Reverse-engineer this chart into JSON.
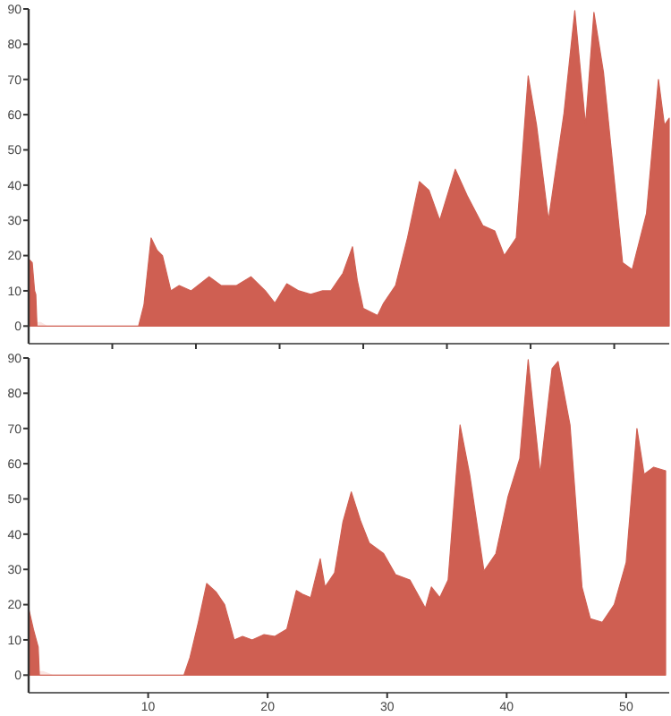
{
  "chart_data": [
    {
      "type": "area",
      "xlim": [
        0,
        53.6
      ],
      "ylim": [
        -5,
        90
      ],
      "yticks": [
        0,
        10,
        20,
        30,
        40,
        50,
        60,
        70,
        80,
        90
      ],
      "xticks": [
        {
          "value": 7,
          "label": null
        },
        {
          "value": 14,
          "label": null
        },
        {
          "value": 21,
          "label": null
        },
        {
          "value": 28,
          "label": null
        },
        {
          "value": 35,
          "label": null
        },
        {
          "value": 42,
          "label": null
        },
        {
          "value": 49,
          "label": null
        }
      ],
      "tick_labels": "y",
      "grid": false,
      "series": [
        {
          "color": "#fbe6e3",
          "x": [
            0.7,
            1.0,
            1.5,
            2.0,
            9.2
          ],
          "values": [
            1,
            1,
            0,
            0,
            0
          ]
        },
        {
          "color": "#cf5f52",
          "x": [
            0,
            0.3,
            0.5,
            0.6,
            0.7,
            9.2,
            9.65,
            10.25,
            10.75,
            11.2,
            11.9,
            12.6,
            13.6,
            15.1,
            16.1,
            17.4,
            18.6,
            19.8,
            20.6,
            21.6,
            22.6,
            23.6,
            24.6,
            25.3,
            26.3,
            27.1,
            27.5,
            28.0,
            29.2,
            29.7,
            30.7,
            31.7,
            32.7,
            33.5,
            34.4,
            35.7,
            36.7,
            38.0,
            39.0,
            39.8,
            40.8,
            41.8,
            42.5,
            43.5,
            44.8,
            45.7,
            46.6,
            47.3,
            48.1,
            49.7,
            50.5,
            51.7,
            52.7,
            53.2,
            53.6
          ],
          "values": [
            19,
            18,
            10,
            9,
            0,
            0,
            6,
            25,
            21.5,
            20,
            10,
            11.5,
            10,
            14,
            11.5,
            11.5,
            14,
            10,
            6.5,
            12,
            10,
            9,
            10,
            10,
            15,
            22.5,
            13,
            5,
            3,
            6.5,
            11.5,
            25,
            41,
            38.5,
            30,
            44.5,
            37,
            28.5,
            27,
            20,
            25,
            71,
            57,
            30,
            60.5,
            89.5,
            57,
            89,
            72,
            18,
            16,
            32,
            70,
            57,
            59
          ]
        }
      ]
    },
    {
      "type": "area",
      "xlim": [
        0,
        53.6
      ],
      "ylim": [
        -5,
        90
      ],
      "yticks": [
        0,
        10,
        20,
        30,
        40,
        50,
        60,
        70,
        80,
        90
      ],
      "xticks": [
        10,
        20,
        30,
        40,
        50
      ],
      "grid": false,
      "series": [
        {
          "color": "#fbe6e3",
          "x": [
            0.9,
            1.2,
            2.0,
            3.0,
            13.0
          ],
          "values": [
            1,
            1,
            0,
            0,
            0
          ]
        },
        {
          "color": "#cf5f52",
          "x": [
            0,
            0.4,
            0.8,
            0.9,
            13.0,
            13.5,
            14.2,
            14.9,
            15.7,
            16.4,
            17.2,
            17.9,
            18.7,
            19.7,
            20.6,
            21.6,
            22.4,
            22.9,
            23.6,
            24.4,
            24.8,
            25.6,
            26.3,
            27.0,
            27.8,
            28.5,
            29.7,
            30.7,
            31.9,
            33.2,
            33.7,
            34.4,
            35.1,
            36.1,
            36.9,
            38.1,
            39.1,
            40.1,
            41.1,
            41.8,
            42.8,
            43.8,
            44.3,
            45.3,
            46.3,
            47.0,
            48.0,
            49.0,
            50.0,
            50.9,
            51.5,
            52.3,
            53.3
          ],
          "values": [
            19,
            13,
            8,
            0,
            0,
            5,
            15,
            26,
            23.5,
            20,
            10,
            11,
            10,
            11.5,
            11,
            13,
            24,
            23,
            22,
            33,
            25,
            29,
            43.5,
            52,
            43.5,
            37.5,
            34.5,
            28.5,
            27,
            19,
            25,
            22,
            27,
            71,
            57,
            29.5,
            34.5,
            50.5,
            61.5,
            89.5,
            57,
            87,
            89,
            71,
            25,
            16,
            15,
            20,
            32,
            70,
            57,
            59,
            58
          ]
        }
      ]
    }
  ]
}
